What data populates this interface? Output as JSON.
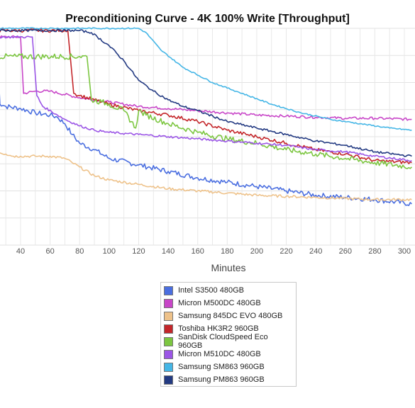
{
  "chart_data": {
    "type": "line",
    "title": "Preconditioning Curve - 4K 100% Write [Throughput]",
    "xlabel": "Minutes",
    "ylabel": "",
    "xlim": [
      20,
      305
    ],
    "ylim": [
      0,
      100
    ],
    "x_ticks": [
      40,
      60,
      80,
      100,
      120,
      140,
      160,
      180,
      200,
      220,
      240,
      260,
      280,
      300
    ],
    "grid": true,
    "legend_position": "bottom-center",
    "series": [
      {
        "name": "Intel S3500 480GB",
        "color": "#4a6ee0",
        "jitter": 1.2,
        "points": [
          [
            20,
            93
          ],
          [
            24,
            94
          ],
          [
            26,
            65
          ],
          [
            30,
            64
          ],
          [
            40,
            63
          ],
          [
            50,
            61
          ],
          [
            60,
            60
          ],
          [
            65,
            59
          ],
          [
            70,
            56
          ],
          [
            75,
            51
          ],
          [
            80,
            47
          ],
          [
            90,
            44
          ],
          [
            100,
            40
          ],
          [
            120,
            37
          ],
          [
            140,
            34
          ],
          [
            160,
            31
          ],
          [
            180,
            29
          ],
          [
            200,
            27
          ],
          [
            220,
            25
          ],
          [
            240,
            23
          ],
          [
            260,
            22
          ],
          [
            280,
            21
          ],
          [
            305,
            19
          ]
        ]
      },
      {
        "name": "Micron M500DC 480GB",
        "color": "#c846c8",
        "jitter": 0.6,
        "points": [
          [
            20,
            96
          ],
          [
            40,
            96
          ],
          [
            42,
            70
          ],
          [
            50,
            71
          ],
          [
            60,
            71
          ],
          [
            80,
            68
          ],
          [
            100,
            66
          ],
          [
            120,
            64
          ],
          [
            140,
            63
          ],
          [
            160,
            62
          ],
          [
            180,
            61
          ],
          [
            200,
            60
          ],
          [
            220,
            59.5
          ],
          [
            240,
            59
          ],
          [
            260,
            58.5
          ],
          [
            280,
            58.5
          ],
          [
            305,
            58
          ]
        ]
      },
      {
        "name": "Samsung 845DC EVO 480GB",
        "color": "#eec28a",
        "jitter": 0.6,
        "points": [
          [
            20,
            82
          ],
          [
            21,
            46
          ],
          [
            25,
            43
          ],
          [
            30,
            42
          ],
          [
            35,
            41
          ],
          [
            40,
            41
          ],
          [
            50,
            41
          ],
          [
            60,
            41
          ],
          [
            70,
            40
          ],
          [
            75,
            38
          ],
          [
            80,
            36
          ],
          [
            90,
            32
          ],
          [
            100,
            30
          ],
          [
            120,
            28
          ],
          [
            140,
            26
          ],
          [
            160,
            25
          ],
          [
            180,
            24
          ],
          [
            200,
            23
          ],
          [
            220,
            22.5
          ],
          [
            240,
            22
          ],
          [
            260,
            21.5
          ],
          [
            280,
            21
          ],
          [
            305,
            21
          ]
        ]
      },
      {
        "name": "Toshiba HK3R2 960GB",
        "color": "#c4262a",
        "jitter": 0.8,
        "points": [
          [
            20,
            99
          ],
          [
            70,
            99
          ],
          [
            72,
            99
          ],
          [
            76,
            70
          ],
          [
            80,
            69
          ],
          [
            90,
            67
          ],
          [
            100,
            65
          ],
          [
            120,
            62
          ],
          [
            140,
            60
          ],
          [
            160,
            57
          ],
          [
            180,
            53
          ],
          [
            200,
            50
          ],
          [
            220,
            47
          ],
          [
            240,
            44
          ],
          [
            260,
            42
          ],
          [
            280,
            39
          ],
          [
            305,
            38
          ]
        ]
      },
      {
        "name": "SanDisk CloudSpeed Eco 960GB",
        "color": "#7cc640",
        "jitter": 1.3,
        "points": [
          [
            20,
            87
          ],
          [
            80,
            87
          ],
          [
            85,
            87
          ],
          [
            88,
            67
          ],
          [
            95,
            66
          ],
          [
            100,
            65
          ],
          [
            110,
            62
          ],
          [
            118,
            54
          ],
          [
            120,
            62
          ],
          [
            125,
            60
          ],
          [
            140,
            56
          ],
          [
            160,
            52
          ],
          [
            180,
            49
          ],
          [
            200,
            47
          ],
          [
            220,
            44
          ],
          [
            240,
            42
          ],
          [
            260,
            40
          ],
          [
            280,
            38
          ],
          [
            305,
            36
          ]
        ]
      },
      {
        "name": "Micron M510DC 480GB",
        "color": "#9b55e6",
        "jitter": 0.5,
        "points": [
          [
            20,
            96
          ],
          [
            48,
            96
          ],
          [
            51,
            69
          ],
          [
            55,
            64
          ],
          [
            65,
            60
          ],
          [
            70,
            58
          ],
          [
            80,
            55
          ],
          [
            90,
            53
          ],
          [
            100,
            52
          ],
          [
            120,
            51
          ],
          [
            140,
            50
          ],
          [
            160,
            49
          ],
          [
            180,
            48
          ],
          [
            200,
            47
          ],
          [
            220,
            46
          ],
          [
            240,
            44
          ],
          [
            260,
            43
          ],
          [
            280,
            41
          ],
          [
            305,
            39
          ]
        ]
      },
      {
        "name": "Samsung SM863 960GB",
        "color": "#45b6e6",
        "jitter": 0.3,
        "points": [
          [
            20,
            100
          ],
          [
            120,
            100
          ],
          [
            125,
            98
          ],
          [
            135,
            90
          ],
          [
            150,
            82
          ],
          [
            170,
            75
          ],
          [
            190,
            70
          ],
          [
            210,
            65
          ],
          [
            230,
            61
          ],
          [
            250,
            58
          ],
          [
            270,
            56
          ],
          [
            290,
            54
          ],
          [
            305,
            53
          ]
        ]
      },
      {
        "name": "Samsung PM863 960GB",
        "color": "#233a82",
        "jitter": 0.5,
        "points": [
          [
            20,
            99
          ],
          [
            80,
            99
          ],
          [
            88,
            98
          ],
          [
            100,
            92
          ],
          [
            110,
            85
          ],
          [
            120,
            76
          ],
          [
            130,
            71
          ],
          [
            140,
            67
          ],
          [
            150,
            64
          ],
          [
            160,
            62
          ],
          [
            180,
            57
          ],
          [
            200,
            54
          ],
          [
            220,
            51
          ],
          [
            240,
            48
          ],
          [
            260,
            46
          ],
          [
            280,
            43
          ],
          [
            305,
            41
          ]
        ]
      }
    ]
  }
}
